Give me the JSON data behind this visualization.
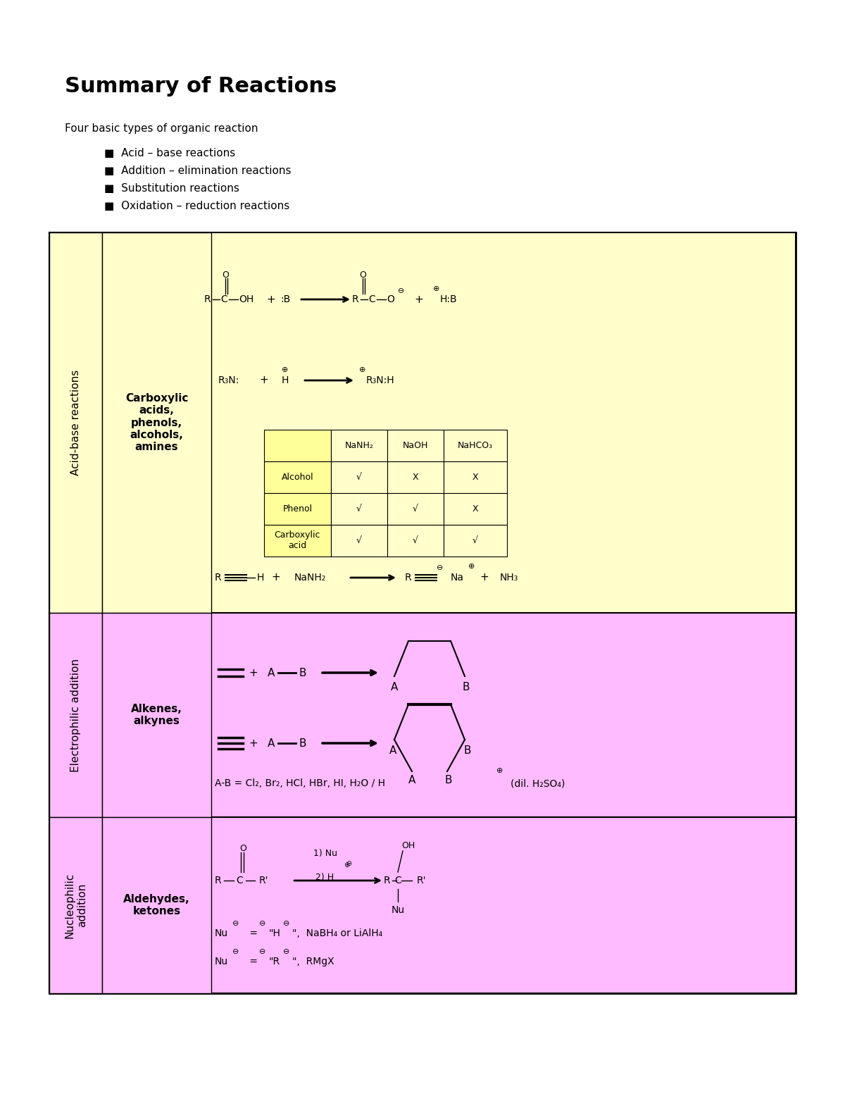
{
  "title": "Summary of Reactions",
  "bg_color": "#ffffff",
  "intro_text": "Four basic types of organic reaction",
  "bullets": [
    "Acid – base reactions",
    "Addition – elimination reactions",
    "Substitution reactions",
    "Oxidation – reduction reactions"
  ],
  "row1_bg": "#ffffcc",
  "row2_bg": "#ffbbff",
  "row3_bg": "#ffbbff",
  "table_headers": [
    "NaNH₂",
    "NaOH",
    "NaHCO₃"
  ],
  "table_rows": [
    [
      "Alcohol",
      "√",
      "X",
      "X"
    ],
    [
      "Phenol",
      "√",
      "√",
      "X"
    ],
    [
      "Carboxylic\nacid",
      "√",
      "√",
      "√"
    ]
  ],
  "row1_side_label": "Acid-base reactions",
  "row1_mid_label": "Carboxylic\nacids,\nphenols,\nalcohols,\namines",
  "row2_side_label": "Electrophilic addition",
  "row2_mid_label": "Alkenes,\nalkynes",
  "row3_side_label": "Nucleophilic\naddition",
  "row3_mid_label": "Aldehydes,\nketones"
}
